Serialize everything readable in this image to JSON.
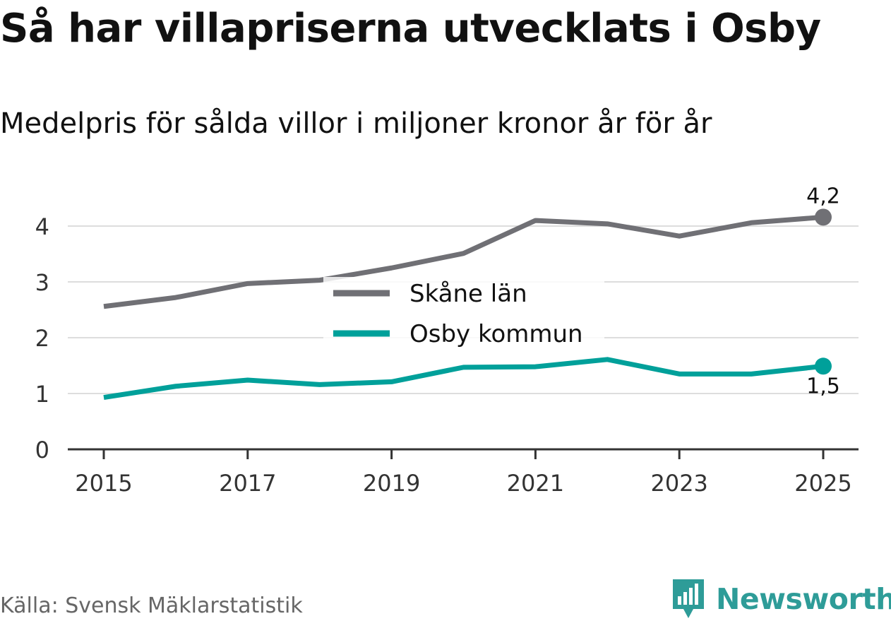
{
  "header": {
    "title": "Så har villapriserna utvecklats i Osby",
    "subtitle": "Medelpris för sålda villor i miljoner kronor år för år"
  },
  "footer": {
    "source": "Källa: Svensk Mäklarstatistik",
    "brand": "Newsworthy"
  },
  "colors": {
    "skane": "#707075",
    "osby": "#00a09a",
    "grid": "#dddddd",
    "axis": "#333333",
    "brand": "#2e9c98"
  },
  "chart_data": {
    "type": "line",
    "title": "Så har villapriserna utvecklats i Osby",
    "subtitle": "Medelpris för sålda villor i miljoner kronor år för år",
    "xlabel": "",
    "ylabel": "",
    "x": [
      2015,
      2016,
      2017,
      2018,
      2019,
      2020,
      2021,
      2022,
      2023,
      2024,
      2025
    ],
    "xticks": [
      "2015",
      "2017",
      "2019",
      "2021",
      "2023",
      "2025"
    ],
    "xlim": [
      2015,
      2025
    ],
    "yticks": [
      "0",
      "1",
      "2",
      "3",
      "4"
    ],
    "ylim": [
      0,
      4.2
    ],
    "grid": true,
    "legend_position": "center",
    "series": [
      {
        "name": "Skåne län",
        "color": "#707075",
        "values": [
          2.56,
          2.72,
          2.97,
          3.03,
          3.25,
          3.51,
          4.1,
          4.04,
          3.82,
          4.06,
          4.16
        ],
        "end_label": "4,2"
      },
      {
        "name": "Osby kommun",
        "color": "#00a09a",
        "values": [
          0.93,
          1.13,
          1.24,
          1.16,
          1.21,
          1.47,
          1.48,
          1.61,
          1.35,
          1.35,
          1.49
        ],
        "end_label": "1,5"
      }
    ]
  }
}
